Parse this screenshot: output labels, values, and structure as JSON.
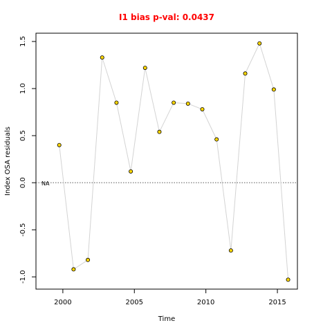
{
  "chart_data": {
    "type": "line",
    "title": "I1 bias p-val: 0.0437",
    "title_color": "#ff0000",
    "xlabel": "Time",
    "ylabel": "Index OSA residuals",
    "x": [
      1999.75,
      2000.75,
      2001.75,
      2002.75,
      2003.75,
      2004.75,
      2005.75,
      2006.75,
      2007.75,
      2008.75,
      2009.75,
      2010.75,
      2011.75,
      2012.75,
      2013.75,
      2014.75,
      2015.75
    ],
    "series": [
      {
        "color": "#d3d3d3",
        "marker_color": "#ffd700",
        "values": [
          0.4,
          -0.92,
          -0.82,
          1.33,
          0.85,
          0.12,
          1.22,
          0.54,
          0.85,
          0.84,
          0.78,
          0.46,
          -0.72,
          1.16,
          1.48,
          0.99,
          -1.03
        ]
      }
    ],
    "xlim": [
      1998.12,
      2016.4
    ],
    "xticks": [
      2000,
      2005,
      2010,
      2015
    ],
    "ylim": [
      -1.13,
      1.588
    ],
    "yticks": [
      {
        "value": -1,
        "label": "-1.0"
      },
      -0.5,
      {
        "value": 0,
        "label": "0.0"
      },
      0.5,
      {
        "value": 1,
        "label": "1.0"
      },
      1.5
    ],
    "hline": 0,
    "annotation": "NA"
  }
}
